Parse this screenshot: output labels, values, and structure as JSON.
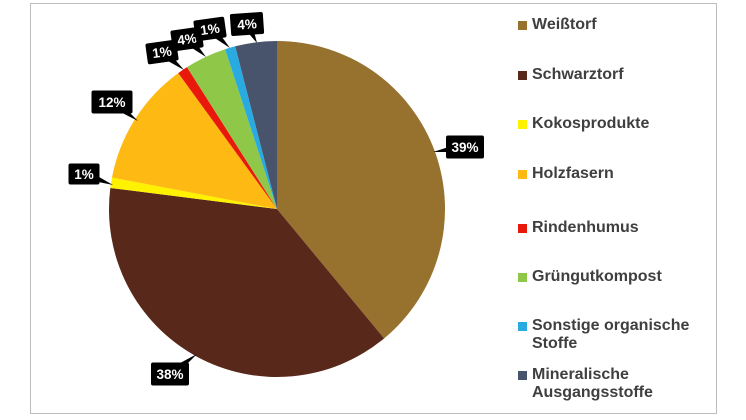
{
  "chart_data": {
    "type": "pie",
    "title": "",
    "unit": "%",
    "direction": "clockwise",
    "start_angle_deg": 0,
    "legend_position": "right",
    "label_style": {
      "background": "#000000",
      "text_color": "#ffffff"
    },
    "frame_border_color": "#bdbdbd",
    "slices": [
      {
        "name": "Weißtorf",
        "value": 39,
        "label": "39%",
        "color": "#97722f"
      },
      {
        "name": "Schwarztorf",
        "value": 38,
        "label": "38%",
        "color": "#58281a"
      },
      {
        "name": "Kokosprodukte",
        "value": 1,
        "label": "1%",
        "color": "#fff200"
      },
      {
        "name": "Holzfasern",
        "value": 12,
        "label": "12%",
        "color": "#feb913"
      },
      {
        "name": "Rindenhumus",
        "value": 1,
        "label": "1%",
        "color": "#e8190b"
      },
      {
        "name": "Grüngutkompost",
        "value": 4,
        "label": "4%",
        "color": "#8fc849"
      },
      {
        "name": "Sonstige organische Stoffe",
        "value": 1,
        "label": "1%",
        "color": "#29abe2"
      },
      {
        "name": "Mineralische Ausgangsstoffe",
        "value": 4,
        "label": "4%",
        "color": "#47546c"
      }
    ]
  }
}
